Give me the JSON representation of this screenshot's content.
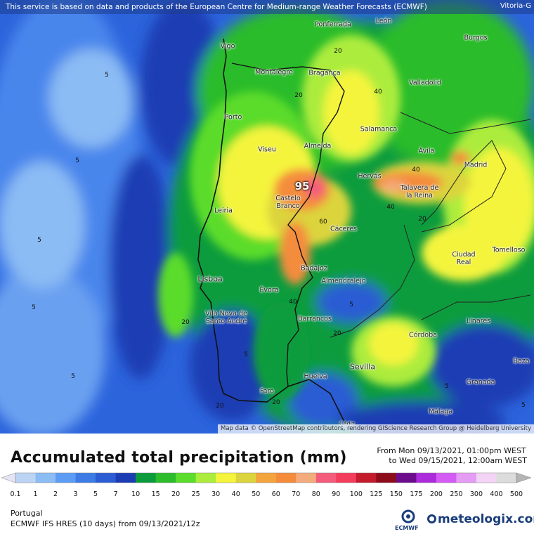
{
  "banner": "This service is based on data and products of the European Centre for Medium-range Weather Forecasts (ECMWF)",
  "corner_label": "Vitoria-G",
  "attribution": "Map data © OpenStreetMap contributors, rendering GIScience Research Group @ Heidelberg University",
  "cities": [
    {
      "name": "Vigo"
    },
    {
      "name": "Ponferrada"
    },
    {
      "name": "León"
    },
    {
      "name": "Burgos"
    },
    {
      "name": "Montalegre"
    },
    {
      "name": "Bragança"
    },
    {
      "name": "Valladolid"
    },
    {
      "name": "Porto"
    },
    {
      "name": "Salamanca"
    },
    {
      "name": "Viseu"
    },
    {
      "name": "Almeida"
    },
    {
      "name": "Ávila"
    },
    {
      "name": "Madrid"
    },
    {
      "name": "Hervás"
    },
    {
      "name": "Talavera de la Reina"
    },
    {
      "name": "Castelo Branco"
    },
    {
      "name": "Leiria"
    },
    {
      "name": "Cáceres"
    },
    {
      "name": "Ciudad Real"
    },
    {
      "name": "Tomelloso"
    },
    {
      "name": "Badajoz"
    },
    {
      "name": "Lisboa"
    },
    {
      "name": "Almendralejo"
    },
    {
      "name": "Évora"
    },
    {
      "name": "Vila Nova de Santo André"
    },
    {
      "name": "Barrancos"
    },
    {
      "name": "Linares"
    },
    {
      "name": "Córdoba"
    },
    {
      "name": "Baza"
    },
    {
      "name": "Sevilla"
    },
    {
      "name": "Huelva"
    },
    {
      "name": "Granada"
    },
    {
      "name": "Faro"
    },
    {
      "name": "Málaga"
    },
    {
      "name": "Cádiz"
    }
  ],
  "contour_labels": [
    "5",
    "5",
    "5",
    "5",
    "5",
    "5",
    "5",
    "5",
    "5",
    "20",
    "20",
    "20",
    "20",
    "20",
    "20",
    "20",
    "40",
    "40",
    "40",
    "40",
    "60"
  ],
  "max_value": "95",
  "legend": {
    "title": "Accumulated total precipitation (mm)",
    "from": "From Mon 09/13/2021, 01:00pm WEST",
    "to": "to Wed 09/15/2021, 12:00am WEST",
    "ticks": [
      "0.1",
      "1",
      "2",
      "3",
      "5",
      "7",
      "10",
      "15",
      "20",
      "25",
      "30",
      "40",
      "50",
      "60",
      "70",
      "80",
      "90",
      "100",
      "125",
      "150",
      "175",
      "200",
      "250",
      "300",
      "400",
      "500"
    ],
    "colors": [
      "#e4e4f4",
      "#bcd4f4",
      "#8cbcf4",
      "#5c9cf4",
      "#3c7ce4",
      "#2c5cd4",
      "#1c3cb4",
      "#0c9c3c",
      "#2cbc2c",
      "#5cdc2c",
      "#acec3c",
      "#f4f43c",
      "#dcd43c",
      "#f4a43c",
      "#f48c3c",
      "#f4ac7c",
      "#f45c7c",
      "#f43c5c",
      "#c41c2c",
      "#8c0c1c",
      "#6c0c8c",
      "#ac2cdc",
      "#d45cf4",
      "#e49cf4",
      "#f4d4f4",
      "#dcdcdc",
      "#b4b4b4"
    ],
    "region": "Portugal",
    "model": "ECMWF IFS HRES (10 days) from 09/13/2021/12z",
    "ecmwf_logo": "ECMWF",
    "brand": "meteologix.com"
  }
}
